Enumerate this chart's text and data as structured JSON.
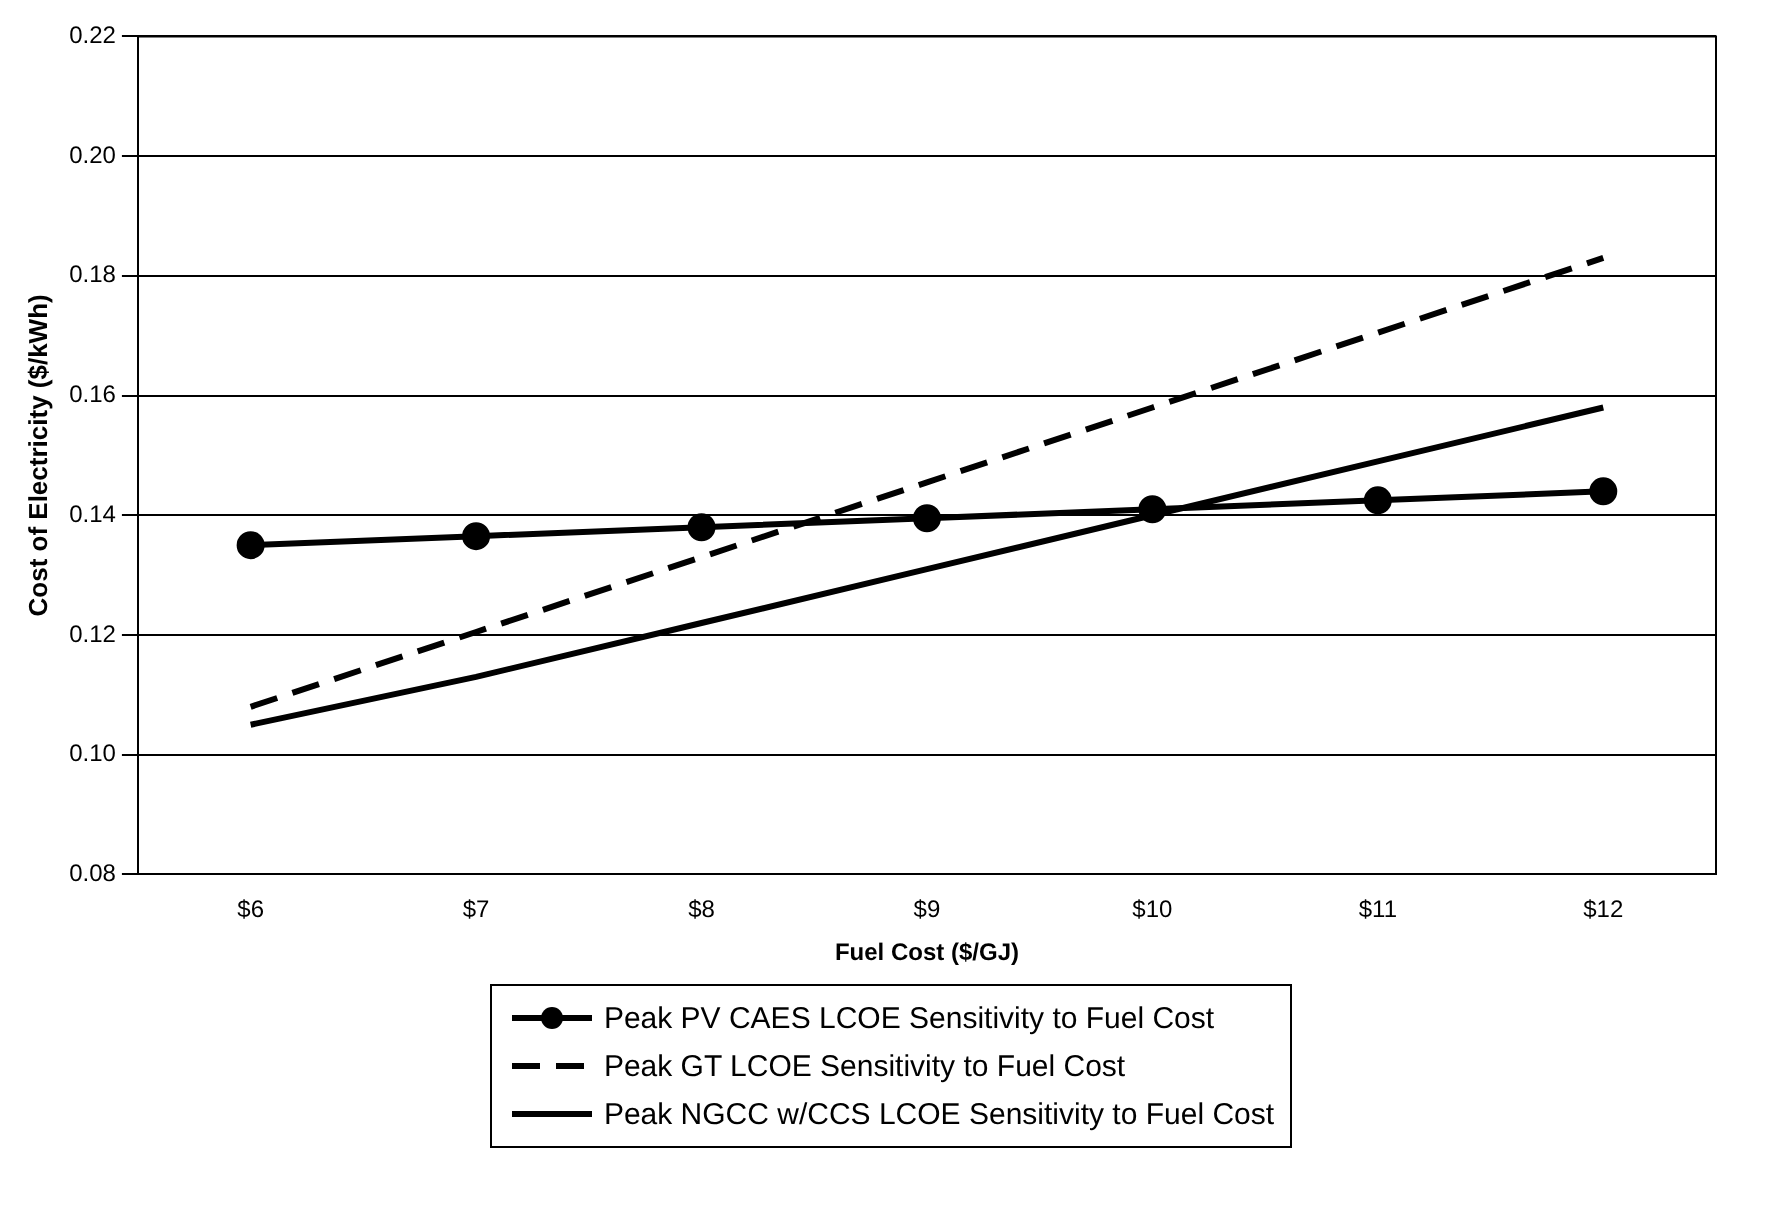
{
  "chart_data": {
    "type": "line",
    "xlabel": "Fuel Cost ($/GJ)",
    "ylabel": "Cost of Electricity ($/kWh)",
    "categories": [
      "$6",
      "$7",
      "$8",
      "$9",
      "$10",
      "$11",
      "$12"
    ],
    "series": [
      {
        "name": "Peak PV CAES LCOE Sensitivity to Fuel Cost",
        "color": "#000000",
        "marker": "circle",
        "line_style": "solid",
        "values": [
          0.135,
          0.1365,
          0.138,
          0.1395,
          0.141,
          0.1425,
          0.144
        ]
      },
      {
        "name": "Peak GT LCOE Sensitivity to Fuel Cost",
        "color": "#000000",
        "marker": "none",
        "line_style": "dashed",
        "values": [
          0.108,
          0.1205,
          0.133,
          0.1455,
          0.158,
          0.1705,
          0.183
        ]
      },
      {
        "name": "Peak NGCC w/CCS LCOE Sensitivity to Fuel Cost",
        "color": "#000000",
        "marker": "none",
        "line_style": "solid",
        "values": [
          0.105,
          0.113,
          0.122,
          0.131,
          0.14,
          0.149,
          0.158
        ]
      }
    ],
    "ylim": [
      0.08,
      0.22
    ],
    "yticks": [
      {
        "value": 0.08,
        "label": "0.08"
      },
      {
        "value": 0.1,
        "label": "0.10"
      },
      {
        "value": 0.12,
        "label": "0.12"
      },
      {
        "value": 0.14,
        "label": "0.14"
      },
      {
        "value": 0.16,
        "label": "0.16"
      },
      {
        "value": 0.18,
        "label": "0.18"
      },
      {
        "value": 0.2,
        "label": "0.20"
      },
      {
        "value": 0.22,
        "label": "0.22"
      }
    ],
    "grid": "y",
    "legend": "bottom"
  }
}
